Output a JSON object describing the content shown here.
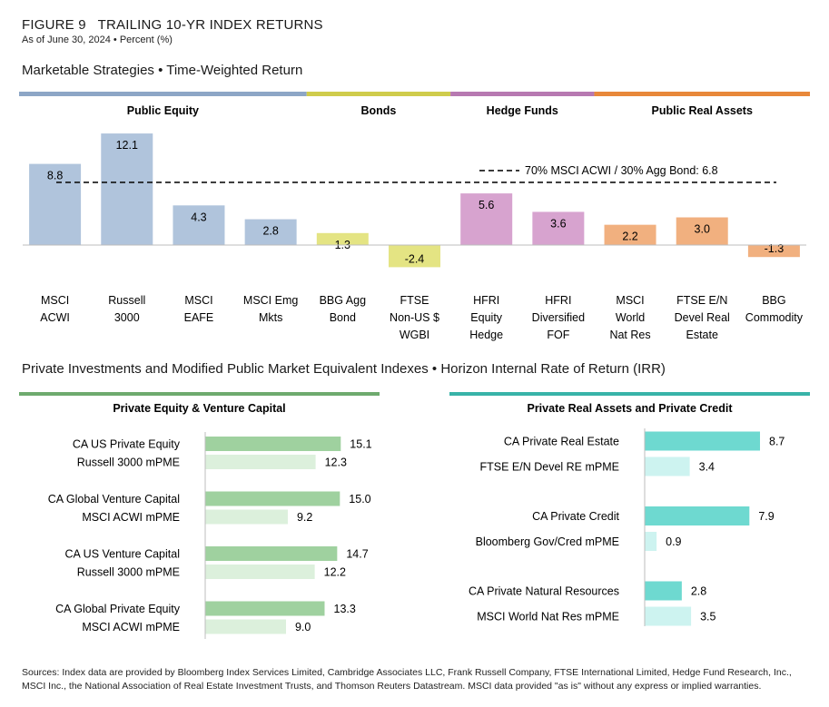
{
  "figure": {
    "label": "FIGURE 9",
    "title": "TRAILING 10-YR INDEX RETURNS",
    "subtitle": "As of June 30, 2024 • Percent (%)"
  },
  "sections": {
    "marketable": "Marketable Strategies • Time-Weighted Return",
    "private": "Private Investments and Modified Public Market Equivalent Indexes • Horizon Internal Rate of Return (IRR)"
  },
  "sources": "Sources: Index data are provided by Bloomberg Index Services Limited, Cambridge Associates LLC, Frank Russell Company, FTSE International Limited, Hedge Fund Research, Inc., MSCI Inc., the National Association of Real Estate Investment Trusts, and Thomson Reuters Datastream. MSCI data provided \"as is\" without any express or implied warranties.",
  "chart_data": [
    {
      "type": "bar",
      "title": "Marketable Strategies • Time-Weighted Return",
      "groups": [
        {
          "name": "Public Equity",
          "color": "#8da6c6",
          "count": 4
        },
        {
          "name": "Bonds",
          "color": "#cfcc4c",
          "count": 2
        },
        {
          "name": "Hedge Funds",
          "color": "#b779b1",
          "count": 2
        },
        {
          "name": "Public Real Assets",
          "color": "#e8883a",
          "count": 3
        }
      ],
      "categories": [
        [
          "MSCI",
          "ACWI"
        ],
        [
          "Russell",
          "3000"
        ],
        [
          "MSCI",
          "EAFE"
        ],
        [
          "MSCI Emg",
          "Mkts"
        ],
        [
          "BBG Agg",
          "Bond"
        ],
        [
          "FTSE",
          "Non-US $",
          "WGBI"
        ],
        [
          "HFRI",
          "Equity",
          "Hedge"
        ],
        [
          "HFRI",
          "Diversified",
          "FOF"
        ],
        [
          "MSCI",
          "World",
          "Nat Res"
        ],
        [
          "FTSE E/N",
          "Devel Real",
          "Estate"
        ],
        [
          "BBG",
          "Commodity"
        ]
      ],
      "values": [
        8.8,
        12.1,
        4.3,
        2.8,
        1.3,
        -2.4,
        5.6,
        3.6,
        2.2,
        3.0,
        -1.3
      ],
      "value_labels": [
        "8.8",
        "12.1",
        "4.3",
        "2.8",
        "1.3",
        "-2.4",
        "5.6",
        "3.6",
        "2.2",
        "3.0",
        "-1.3"
      ],
      "bar_colors": [
        "#b0c4dc",
        "#b0c4dc",
        "#b0c4dc",
        "#b0c4dc",
        "#e4e483",
        "#e4e483",
        "#d7a3cf",
        "#d7a3cf",
        "#f1b07f",
        "#f1b07f",
        "#f1b07f"
      ],
      "benchmark": {
        "label": "70% MSCI ACWI / 30% Agg Bond: 6.8",
        "value": 6.8
      },
      "ylim": [
        -2.6,
        12.5
      ],
      "grid": false
    },
    {
      "type": "bar",
      "orientation": "horizontal",
      "title": "Private Equity & Venture Capital",
      "header_color": "#6eaa6e",
      "primary_color": "#9fd19f",
      "secondary_color": "#dcf0dc",
      "rows": [
        {
          "label": "CA US Private Equity",
          "value": 15.1,
          "value_label": "15.1",
          "primary": true
        },
        {
          "label": "Russell 3000 mPME",
          "value": 12.3,
          "value_label": "12.3",
          "primary": false
        },
        {
          "label": "CA Global Venture Capital",
          "value": 15.0,
          "value_label": "15.0",
          "primary": true
        },
        {
          "label": "MSCI ACWI mPME",
          "value": 9.2,
          "value_label": "9.2",
          "primary": false
        },
        {
          "label": "CA US Venture Capital",
          "value": 14.7,
          "value_label": "14.7",
          "primary": true
        },
        {
          "label": "Russell 3000 mPME",
          "value": 12.2,
          "value_label": "12.2",
          "primary": false
        },
        {
          "label": "CA Global Private Equity",
          "value": 13.3,
          "value_label": "13.3",
          "primary": true
        },
        {
          "label": "MSCI ACWI mPME",
          "value": 9.0,
          "value_label": "9.0",
          "primary": false
        }
      ],
      "xlim": [
        0,
        16
      ]
    },
    {
      "type": "bar",
      "orientation": "horizontal",
      "title": "Private Real Assets and Private Credit",
      "header_color": "#38b3a8",
      "primary_color": "#6ed9d0",
      "secondary_color": "#cdf3f0",
      "rows": [
        {
          "label": "CA Private Real Estate",
          "value": 8.7,
          "value_label": "8.7",
          "primary": true
        },
        {
          "label": "FTSE E/N Devel RE mPME",
          "value": 3.4,
          "value_label": "3.4",
          "primary": false
        },
        {
          "label": "CA Private Credit",
          "value": 7.9,
          "value_label": "7.9",
          "primary": true
        },
        {
          "label": "Bloomberg Gov/Cred mPME",
          "value": 0.9,
          "value_label": "0.9",
          "primary": false
        },
        {
          "label": "CA Private Natural Resources",
          "value": 2.8,
          "value_label": "2.8",
          "primary": true
        },
        {
          "label": "MSCI World Nat Res mPME",
          "value": 3.5,
          "value_label": "3.5",
          "primary": false
        }
      ],
      "xlim": [
        0,
        9.2
      ]
    }
  ]
}
